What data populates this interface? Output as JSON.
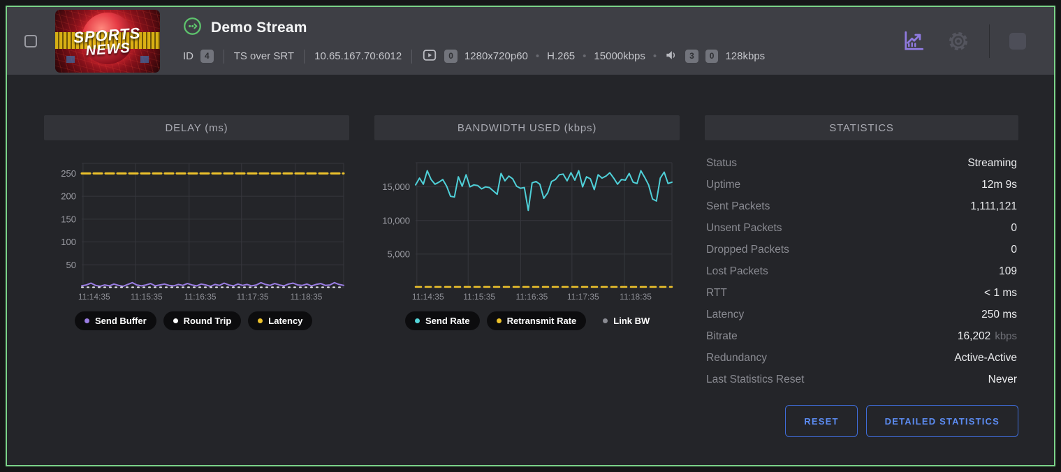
{
  "header": {
    "title": "Demo Stream",
    "id_label": "ID",
    "id_value": "4",
    "protocol": "TS over SRT",
    "address": "10.65.167.70:6012",
    "video": {
      "badge": "0",
      "resolution": "1280x720p60",
      "codec": "H.265",
      "bitrate": "15000kbps"
    },
    "audio": {
      "badge_a": "3",
      "badge_b": "0",
      "bitrate": "128kbps"
    },
    "thumbnail": {
      "line1": "SPORTS",
      "line2": "NEWS"
    }
  },
  "colors": {
    "frame_green": "#7bd389",
    "status_green": "#5ec46d",
    "accent_purple": "#8f7ae0",
    "button_blue": "#5c8cf2",
    "send_rate_cyan": "#4fd0d8",
    "latency_yellow": "#edc22b",
    "send_buffer_purple": "#9b7de4",
    "grid": "#36373d"
  },
  "chart_data": [
    {
      "id": "delay",
      "type": "line",
      "title": "DELAY (ms)",
      "xlabel": "time",
      "ylabel": "ms",
      "ylim": [
        0,
        272
      ],
      "grid": true,
      "legend_position": "bottom",
      "x_ticks": [
        {
          "label": "11:14:35",
          "pos": 0.005
        },
        {
          "label": "11:15:35",
          "pos": 0.205
        },
        {
          "label": "11:16:35",
          "pos": 0.41
        },
        {
          "label": "11:17:35",
          "pos": 0.61
        },
        {
          "label": "11:18:35",
          "pos": 0.815
        }
      ],
      "y_ticks": [
        {
          "label": "250",
          "value": 250
        },
        {
          "label": "200",
          "value": 200
        },
        {
          "label": "150",
          "value": 150
        },
        {
          "label": "100",
          "value": 100
        },
        {
          "label": "50",
          "value": 50
        }
      ],
      "series": [
        {
          "name": "Send Buffer",
          "color": "#9b7de4",
          "width": 2,
          "values": [
            4,
            6,
            10,
            5,
            3,
            6,
            4,
            8,
            5,
            3,
            7,
            11,
            6,
            4,
            6,
            9,
            4,
            6,
            8,
            5,
            4,
            7,
            5,
            9,
            6,
            4,
            8,
            6,
            3,
            7,
            5,
            10,
            6,
            4,
            8,
            5,
            7,
            4,
            6,
            11,
            7,
            5,
            9,
            6,
            4,
            8,
            10,
            6,
            5,
            8,
            4,
            7,
            9,
            5,
            6,
            11,
            7,
            5
          ]
        },
        {
          "name": "Round Trip",
          "color": "#e8e9ec",
          "width": 2,
          "dash": "2 6",
          "constant": 1
        },
        {
          "name": "Latency",
          "color": "#edc22b",
          "width": 3,
          "dash": "12 5",
          "constant": 250
        }
      ],
      "legend": [
        {
          "label": "Send Buffer",
          "color": "#9b7de4",
          "pill": true
        },
        {
          "label": "Round Trip",
          "color": "#ffffff",
          "pill": true
        },
        {
          "label": "Latency",
          "color": "#edc22b",
          "pill": true
        }
      ]
    },
    {
      "id": "bandwidth",
      "type": "line",
      "title": "BANDWIDTH USED (kbps)",
      "xlabel": "time",
      "ylabel": "kbps",
      "ylim": [
        0,
        18600
      ],
      "grid": true,
      "legend_position": "bottom",
      "x_ticks": [
        {
          "label": "11:14:35",
          "pos": 0.005
        },
        {
          "label": "11:15:35",
          "pos": 0.205
        },
        {
          "label": "11:16:35",
          "pos": 0.41
        },
        {
          "label": "11:17:35",
          "pos": 0.61
        },
        {
          "label": "11:18:35",
          "pos": 0.815
        }
      ],
      "y_ticks": [
        {
          "label": "15,000",
          "value": 15000
        },
        {
          "label": "10,000",
          "value": 10000
        },
        {
          "label": "5,000",
          "value": 5000
        }
      ],
      "series": [
        {
          "name": "Send Rate",
          "color": "#4fd0d8",
          "width": 2,
          "values": [
            15300,
            16300,
            15400,
            17400,
            16100,
            15400,
            15700,
            16100,
            15100,
            13600,
            13500,
            16500,
            15100,
            16800,
            15000,
            15300,
            15200,
            14700,
            15000,
            14900,
            14400,
            13900,
            17000,
            15900,
            16600,
            16200,
            15100,
            14800,
            14900,
            11500,
            15600,
            15800,
            15400,
            13300,
            14100,
            15800,
            16100,
            16800,
            16900,
            15900,
            17100,
            16000,
            17400,
            15000,
            16500,
            16200,
            14600,
            16800,
            16300,
            16600,
            17100,
            16300,
            15400,
            16100,
            16000,
            17000,
            15700,
            15500,
            17400,
            16400,
            15300,
            13200,
            12900,
            16300,
            17200,
            15500,
            15700
          ]
        },
        {
          "name": "Retransmit Rate",
          "color": "#edc22b",
          "width": 2.5,
          "dash": "8 6",
          "constant": 120
        },
        {
          "name": "Link BW",
          "color": "#8a8b92",
          "hidden": true
        }
      ],
      "legend": [
        {
          "label": "Send Rate",
          "color": "#54d6da",
          "pill": true
        },
        {
          "label": "Retransmit Rate",
          "color": "#edc22b",
          "pill": true
        },
        {
          "label": "Link BW",
          "color": "#8a8b92",
          "pill": false
        }
      ]
    }
  ],
  "stats": {
    "title": "STATISTICS",
    "rows": [
      {
        "label": "Status",
        "value": "Streaming"
      },
      {
        "label": "Uptime",
        "value": "12m 9s"
      },
      {
        "label": "Sent Packets",
        "value": "1,111,121"
      },
      {
        "label": "Unsent Packets",
        "value": "0"
      },
      {
        "label": "Dropped Packets",
        "value": "0"
      },
      {
        "label": "Lost Packets",
        "value": "109"
      },
      {
        "label": "RTT",
        "value": "< 1 ms"
      },
      {
        "label": "Latency",
        "value": "250 ms"
      },
      {
        "label": "Bitrate",
        "value": "16,202",
        "suffix": "kbps"
      },
      {
        "label": "Redundancy",
        "value": "Active-Active"
      },
      {
        "label": "Last Statistics Reset",
        "value": "Never"
      }
    ],
    "buttons": {
      "reset": "RESET",
      "detailed": "DETAILED STATISTICS"
    }
  }
}
